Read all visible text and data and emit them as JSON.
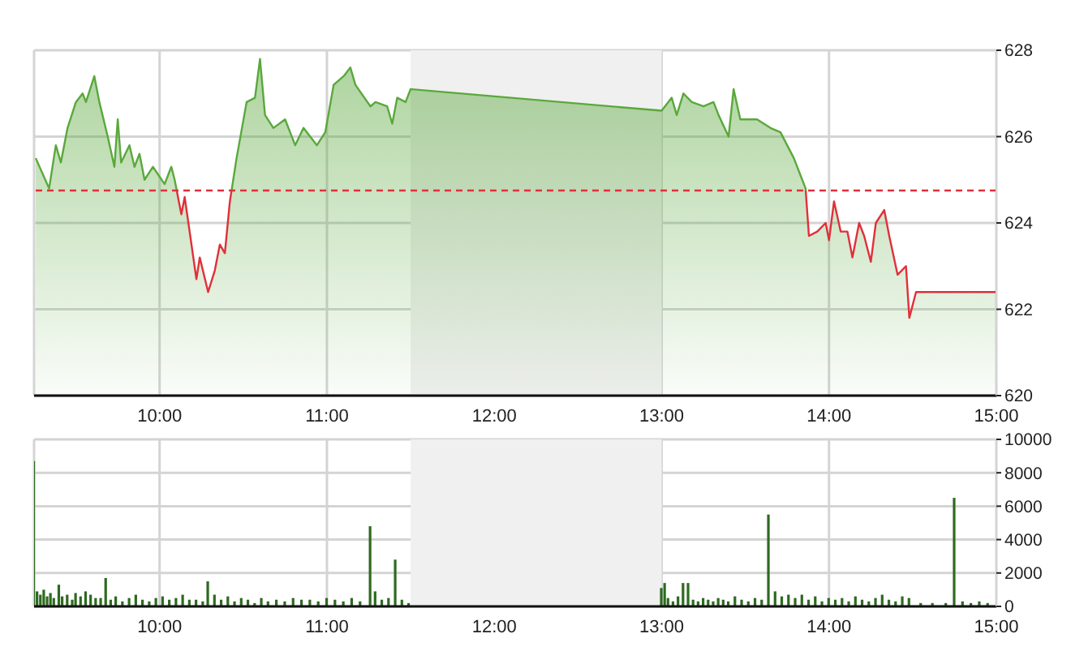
{
  "chart_data": [
    {
      "type": "area",
      "color": "#5aa83c",
      "grid": true,
      "xlim": [
        9.25,
        15
      ],
      "xticks": [
        {
          "value": 10,
          "label": "10:00"
        },
        {
          "value": 11,
          "label": "11:00"
        },
        {
          "value": 12,
          "label": "12:00"
        },
        {
          "value": 13,
          "label": "13:00"
        },
        {
          "value": 14,
          "label": "14:00"
        },
        {
          "value": 15,
          "label": "15:00"
        }
      ],
      "ylim": [
        620,
        628
      ],
      "yticks": [
        620,
        622,
        624,
        626,
        628
      ],
      "ref_lines": [
        {
          "axis": "y",
          "value": 624.75,
          "color": "#e0303a",
          "line_style": "dashed"
        }
      ],
      "bands": [
        {
          "axis": "x",
          "from": 11.5,
          "to": 13,
          "color": "#f0f0f0"
        }
      ],
      "x": [
        9.26,
        9.34,
        9.38,
        9.41,
        9.45,
        9.5,
        9.54,
        9.56,
        9.61,
        9.64,
        9.69,
        9.73,
        9.75,
        9.77,
        9.82,
        9.85,
        9.88,
        9.91,
        9.96,
        10.03,
        10.07,
        10.09,
        10.13,
        10.15,
        10.22,
        10.24,
        10.29,
        10.33,
        10.36,
        10.39,
        10.42,
        10.46,
        10.52,
        10.57,
        10.6,
        10.63,
        10.68,
        10.75,
        10.81,
        10.86,
        10.94,
        10.99,
        11.04,
        11.1,
        11.14,
        11.17,
        11.26,
        11.29,
        11.36,
        11.39,
        11.42,
        11.47,
        11.5,
        13.0,
        13.06,
        13.09,
        13.13,
        13.18,
        13.25,
        13.31,
        13.34,
        13.4,
        13.43,
        13.47,
        13.57,
        13.65,
        13.71,
        13.79,
        13.84,
        13.86,
        13.88,
        13.93,
        13.98,
        14.0,
        14.03,
        14.07,
        14.11,
        14.14,
        14.18,
        14.21,
        14.25,
        14.28,
        14.33,
        14.36,
        14.41,
        14.46,
        14.48,
        14.52,
        15.0
      ],
      "values": [
        625.5,
        624.8,
        625.8,
        625.4,
        626.2,
        626.8,
        627.0,
        626.8,
        627.4,
        626.8,
        626.0,
        625.3,
        626.4,
        625.4,
        625.8,
        625.3,
        625.6,
        625.0,
        625.3,
        624.9,
        625.3,
        625.0,
        624.2,
        624.6,
        622.7,
        623.2,
        622.4,
        622.9,
        623.5,
        623.3,
        624.5,
        625.5,
        626.8,
        626.9,
        627.8,
        626.5,
        626.2,
        626.4,
        625.8,
        626.2,
        625.8,
        626.1,
        627.2,
        627.4,
        627.6,
        627.2,
        626.7,
        626.8,
        626.7,
        626.3,
        626.9,
        626.8,
        627.1,
        626.6,
        626.9,
        626.5,
        627.0,
        626.8,
        626.7,
        626.8,
        626.5,
        626.0,
        627.1,
        626.4,
        626.4,
        626.2,
        626.1,
        625.5,
        625.0,
        624.8,
        623.7,
        623.8,
        624.0,
        623.6,
        624.5,
        623.8,
        623.8,
        623.2,
        624.0,
        623.7,
        623.1,
        624.0,
        624.3,
        623.7,
        622.8,
        623.0,
        621.8,
        622.4,
        622.4
      ]
    },
    {
      "type": "bar",
      "color": "#2d6a1f",
      "grid": true,
      "xlim": [
        9.25,
        15
      ],
      "xticks": [
        {
          "value": 10,
          "label": "10:00"
        },
        {
          "value": 11,
          "label": "11:00"
        },
        {
          "value": 12,
          "label": "12:00"
        },
        {
          "value": 13,
          "label": "13:00"
        },
        {
          "value": 14,
          "label": "14:00"
        },
        {
          "value": 15,
          "label": "15:00"
        }
      ],
      "ylim": [
        0,
        10000
      ],
      "yticks": [
        0,
        2000,
        4000,
        6000,
        8000,
        10000
      ],
      "bands": [
        {
          "axis": "x",
          "from": 11.5,
          "to": 13,
          "color": "#f0f0f0"
        }
      ],
      "x": [
        9.25,
        9.27,
        9.29,
        9.31,
        9.33,
        9.35,
        9.37,
        9.4,
        9.42,
        9.45,
        9.48,
        9.5,
        9.53,
        9.56,
        9.59,
        9.62,
        9.65,
        9.68,
        9.71,
        9.74,
        9.78,
        9.82,
        9.86,
        9.9,
        9.94,
        9.98,
        10.02,
        10.06,
        10.1,
        10.14,
        10.18,
        10.22,
        10.26,
        10.29,
        10.33,
        10.37,
        10.41,
        10.45,
        10.49,
        10.53,
        10.57,
        10.61,
        10.65,
        10.7,
        10.75,
        10.8,
        10.85,
        10.9,
        10.95,
        11.0,
        11.05,
        11.1,
        11.15,
        11.2,
        11.26,
        11.29,
        11.33,
        11.37,
        11.41,
        11.45,
        11.49,
        13.0,
        13.02,
        13.04,
        13.07,
        13.1,
        13.13,
        13.16,
        13.19,
        13.22,
        13.25,
        13.28,
        13.31,
        13.34,
        13.37,
        13.4,
        13.44,
        13.48,
        13.52,
        13.56,
        13.6,
        13.64,
        13.68,
        13.72,
        13.76,
        13.8,
        13.84,
        13.88,
        13.92,
        13.96,
        14.0,
        14.04,
        14.08,
        14.12,
        14.16,
        14.2,
        14.24,
        14.28,
        14.32,
        14.36,
        14.4,
        14.44,
        14.48,
        14.55,
        14.62,
        14.7,
        14.75,
        14.8,
        14.85,
        14.9,
        14.95
      ],
      "values": [
        8700,
        900,
        700,
        1000,
        600,
        800,
        500,
        1300,
        600,
        700,
        400,
        800,
        600,
        900,
        700,
        500,
        500,
        1700,
        400,
        600,
        300,
        500,
        700,
        400,
        300,
        500,
        600,
        400,
        500,
        700,
        400,
        400,
        300,
        1500,
        700,
        400,
        600,
        300,
        500,
        400,
        200,
        500,
        300,
        400,
        300,
        500,
        400,
        400,
        300,
        500,
        400,
        300,
        500,
        300,
        4800,
        900,
        400,
        500,
        2800,
        400,
        200,
        1100,
        1400,
        500,
        300,
        600,
        1400,
        1400,
        400,
        300,
        500,
        400,
        300,
        500,
        400,
        300,
        600,
        400,
        300,
        500,
        400,
        5500,
        900,
        600,
        700,
        500,
        700,
        400,
        600,
        300,
        500,
        400,
        500,
        300,
        600,
        400,
        300,
        500,
        700,
        400,
        300,
        600,
        500,
        200,
        200,
        200,
        6500,
        300,
        200,
        300,
        200
      ]
    }
  ]
}
